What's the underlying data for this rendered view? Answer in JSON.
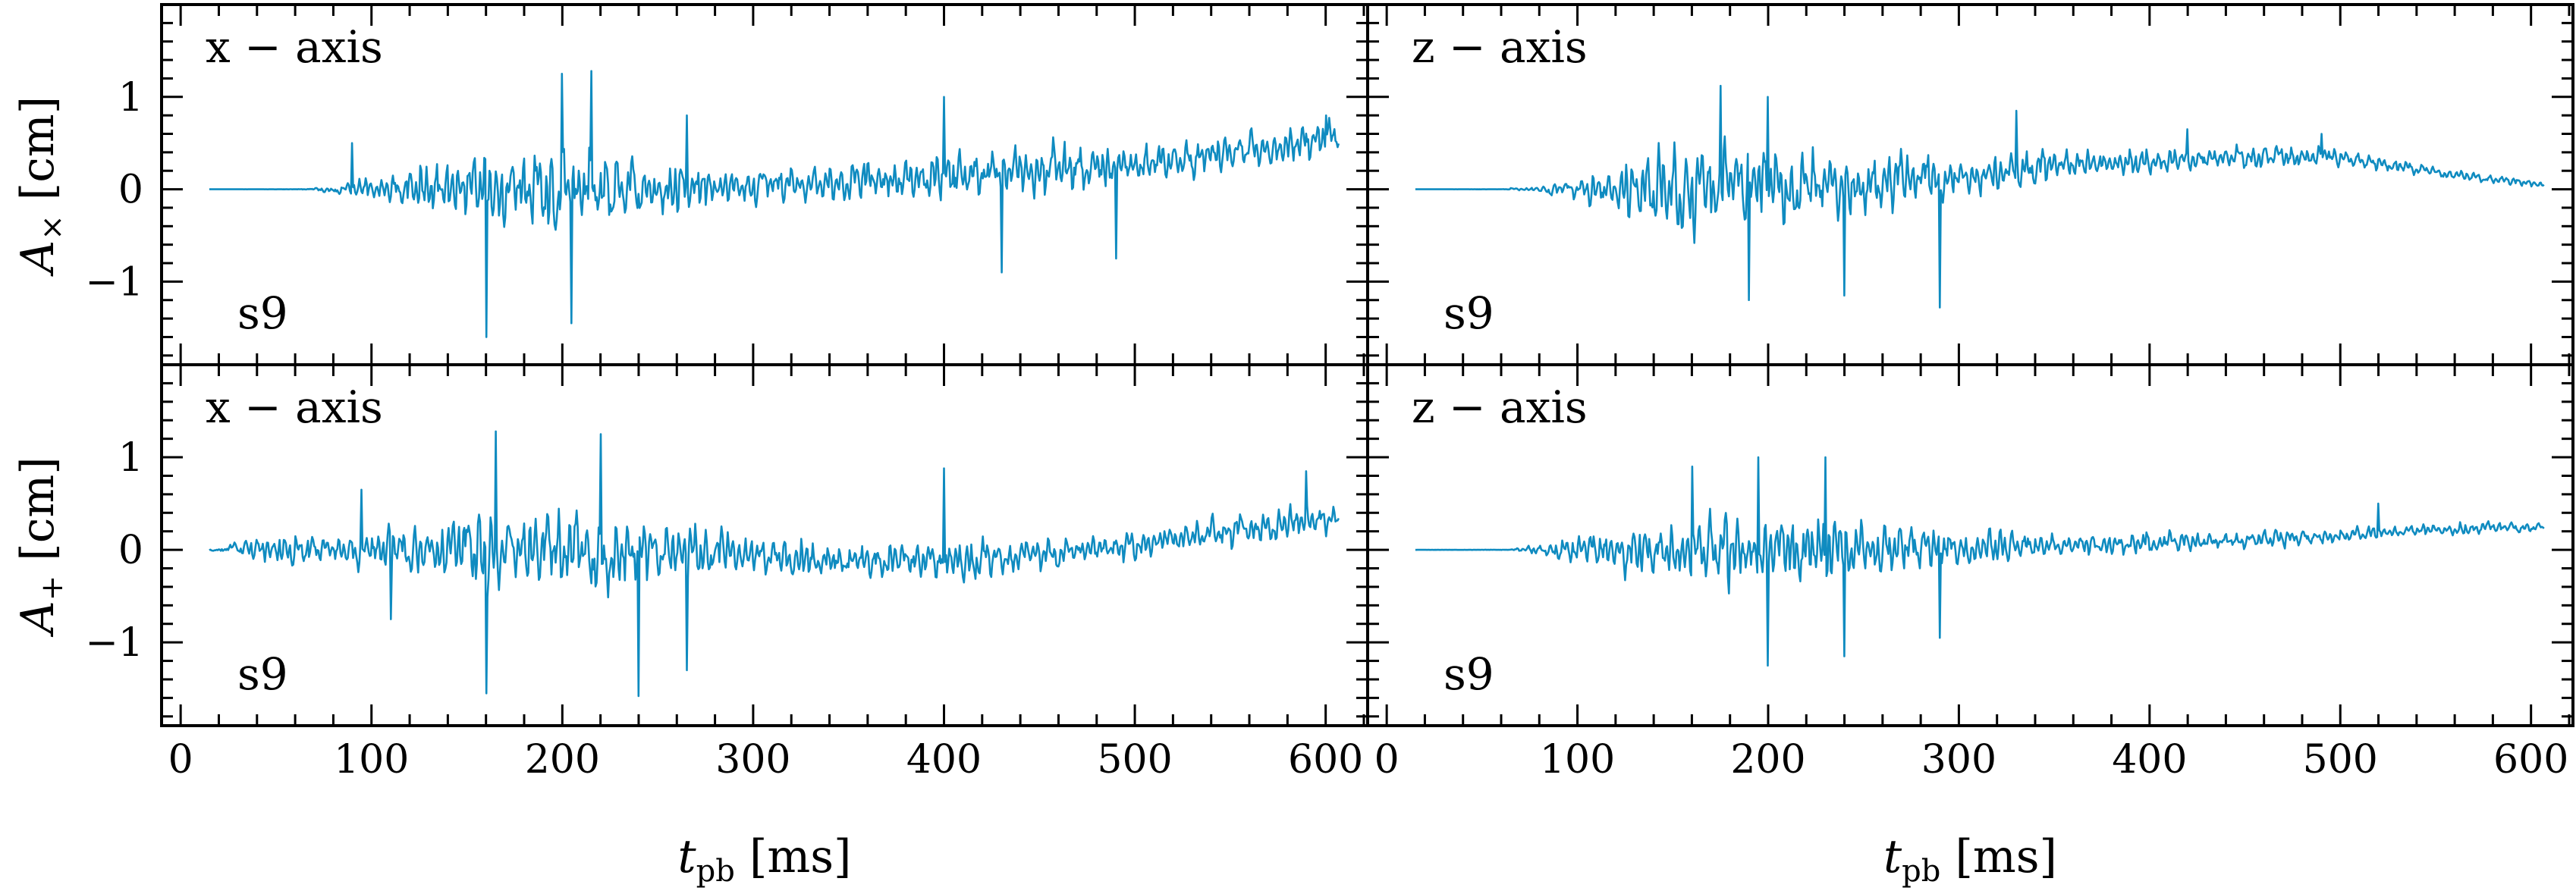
{
  "chart_data": {
    "type": "line",
    "x_unit_label": "t",
    "x_unit_sub": "pb",
    "x_unit_rest": " [ms]",
    "xlim": [
      -10,
      622
    ],
    "ylim": [
      -1.9,
      2.0
    ],
    "xticks": [
      0,
      100,
      200,
      300,
      400,
      500,
      600
    ],
    "yticks": [
      -1,
      0,
      1
    ],
    "ytick_labels": [
      "−1",
      "0",
      "1"
    ],
    "line_color": "#0f8bc0",
    "rows": [
      {
        "ylabel_main": "A",
        "ylabel_sub": "×",
        "ylabel_rest": "  [cm]"
      },
      {
        "ylabel_main": "A",
        "ylabel_sub": "+",
        "ylabel_rest": "  [cm]"
      }
    ],
    "panels": [
      {
        "row": 0,
        "col": 0,
        "axis_label": "x − axis",
        "model_label": "s9",
        "onset_ms": 70,
        "end_ms": 607,
        "envelope": [
          [
            0,
            0
          ],
          [
            60,
            0.01
          ],
          [
            85,
            0.12
          ],
          [
            100,
            0.3
          ],
          [
            120,
            0.5
          ],
          [
            150,
            0.9
          ],
          [
            200,
            1.0
          ],
          [
            250,
            0.75
          ],
          [
            300,
            0.4
          ],
          [
            350,
            0.45
          ],
          [
            400,
            0.6
          ],
          [
            450,
            0.6
          ],
          [
            500,
            0.5
          ],
          [
            550,
            0.45
          ],
          [
            607,
            0.4
          ]
        ],
        "drift": [
          [
            0,
            0
          ],
          [
            100,
            0
          ],
          [
            300,
            0.02
          ],
          [
            400,
            0.12
          ],
          [
            500,
            0.28
          ],
          [
            550,
            0.38
          ],
          [
            607,
            0.55
          ]
        ],
        "peaks": [
          [
            90,
            0.5
          ],
          [
            160,
            -1.6
          ],
          [
            200,
            1.25
          ],
          [
            215,
            1.28
          ],
          [
            205,
            -1.45
          ],
          [
            265,
            0.8
          ],
          [
            400,
            1.0
          ],
          [
            430,
            -0.9
          ],
          [
            490,
            -0.75
          ],
          [
            600,
            0.8
          ]
        ],
        "seed": 11
      },
      {
        "row": 0,
        "col": 1,
        "axis_label": "z − axis",
        "model_label": "s9",
        "onset_ms": 65,
        "end_ms": 607,
        "envelope": [
          [
            0,
            0
          ],
          [
            60,
            0.01
          ],
          [
            80,
            0.08
          ],
          [
            100,
            0.25
          ],
          [
            120,
            0.6
          ],
          [
            150,
            0.95
          ],
          [
            200,
            1.0
          ],
          [
            250,
            0.8
          ],
          [
            300,
            0.5
          ],
          [
            350,
            0.35
          ],
          [
            400,
            0.3
          ],
          [
            450,
            0.25
          ],
          [
            500,
            0.2
          ],
          [
            550,
            0.12
          ],
          [
            607,
            0.08
          ]
        ],
        "drift": [
          [
            0,
            0
          ],
          [
            120,
            0
          ],
          [
            250,
            0.05
          ],
          [
            350,
            0.25
          ],
          [
            450,
            0.35
          ],
          [
            500,
            0.35
          ],
          [
            550,
            0.18
          ],
          [
            607,
            0.05
          ]
        ],
        "peaks": [
          [
            175,
            1.12
          ],
          [
            190,
            -1.2
          ],
          [
            200,
            1.0
          ],
          [
            240,
            -1.15
          ],
          [
            290,
            -1.28
          ],
          [
            330,
            0.85
          ],
          [
            420,
            0.65
          ],
          [
            490,
            0.6
          ]
        ],
        "seed": 23
      },
      {
        "row": 1,
        "col": 0,
        "axis_label": "x − axis",
        "model_label": "s9",
        "onset_ms": 25,
        "end_ms": 607,
        "envelope": [
          [
            0,
            0
          ],
          [
            25,
            0.15
          ],
          [
            40,
            0.35
          ],
          [
            60,
            0.4
          ],
          [
            80,
            0.25
          ],
          [
            100,
            0.5
          ],
          [
            120,
            0.6
          ],
          [
            150,
            0.95
          ],
          [
            200,
            1.0
          ],
          [
            250,
            0.85
          ],
          [
            300,
            0.5
          ],
          [
            350,
            0.35
          ],
          [
            400,
            0.5
          ],
          [
            450,
            0.4
          ],
          [
            500,
            0.3
          ],
          [
            550,
            0.35
          ],
          [
            607,
            0.45
          ]
        ],
        "drift": [
          [
            0,
            0
          ],
          [
            200,
            0
          ],
          [
            300,
            -0.05
          ],
          [
            350,
            -0.12
          ],
          [
            420,
            -0.1
          ],
          [
            500,
            0.05
          ],
          [
            560,
            0.22
          ],
          [
            607,
            0.35
          ]
        ],
        "peaks": [
          [
            95,
            0.65
          ],
          [
            110,
            -0.75
          ],
          [
            165,
            1.28
          ],
          [
            160,
            -1.55
          ],
          [
            220,
            1.25
          ],
          [
            240,
            -1.58
          ],
          [
            265,
            -1.3
          ],
          [
            400,
            0.88
          ],
          [
            590,
            0.85
          ]
        ],
        "seed": 37
      },
      {
        "row": 1,
        "col": 1,
        "axis_label": "z − axis",
        "model_label": "s9",
        "onset_ms": 65,
        "end_ms": 607,
        "envelope": [
          [
            0,
            0
          ],
          [
            65,
            0.02
          ],
          [
            80,
            0.12
          ],
          [
            100,
            0.35
          ],
          [
            130,
            0.6
          ],
          [
            170,
            0.85
          ],
          [
            200,
            0.95
          ],
          [
            230,
            0.9
          ],
          [
            270,
            0.6
          ],
          [
            300,
            0.45
          ],
          [
            350,
            0.3
          ],
          [
            400,
            0.25
          ],
          [
            450,
            0.2
          ],
          [
            500,
            0.18
          ],
          [
            550,
            0.15
          ],
          [
            607,
            0.12
          ]
        ],
        "drift": [
          [
            0,
            0
          ],
          [
            150,
            0
          ],
          [
            300,
            0.02
          ],
          [
            400,
            0.08
          ],
          [
            500,
            0.15
          ],
          [
            550,
            0.22
          ],
          [
            607,
            0.25
          ]
        ],
        "peaks": [
          [
            160,
            0.9
          ],
          [
            195,
            1.0
          ],
          [
            200,
            -1.25
          ],
          [
            230,
            1.0
          ],
          [
            240,
            -1.15
          ],
          [
            290,
            -0.95
          ],
          [
            520,
            0.5
          ]
        ],
        "seed": 53
      }
    ]
  }
}
